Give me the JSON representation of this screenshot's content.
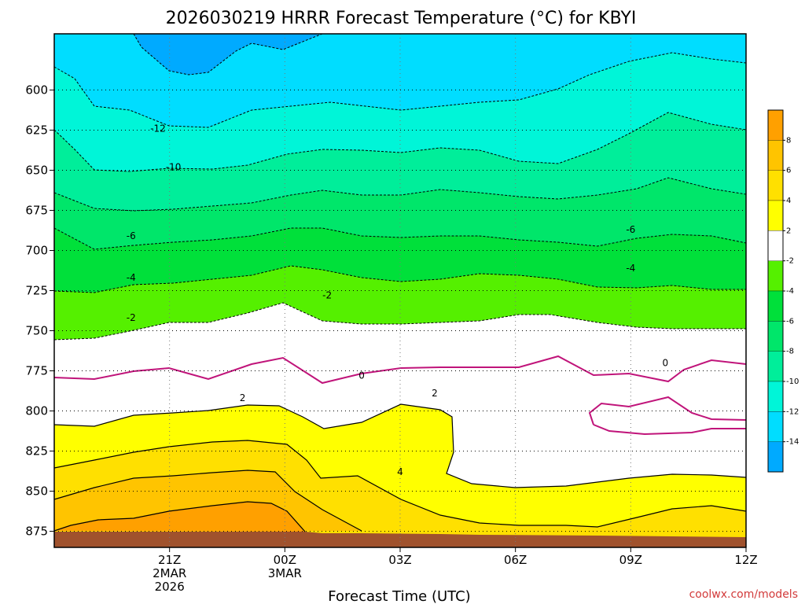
{
  "chart_data": {
    "type": "heatmap",
    "title": "2026030219 HRRR Forecast Temperature (°C) for KBYI",
    "xlabel": "Forecast Time (UTC)",
    "ylabel": "",
    "y_axis": {
      "reversed": true,
      "range": [
        885,
        565
      ],
      "ticks": [
        600,
        625,
        650,
        675,
        700,
        725,
        750,
        775,
        800,
        825,
        850,
        875
      ]
    },
    "x_axis": {
      "range": [
        -3,
        15
      ],
      "ticks": [
        {
          "x": 0,
          "lines": [
            "21Z",
            "2MAR",
            "2026"
          ]
        },
        {
          "x": 3,
          "lines": [
            "00Z",
            "3MAR"
          ]
        },
        {
          "x": 6,
          "lines": [
            "03Z"
          ]
        },
        {
          "x": 9,
          "lines": [
            "06Z"
          ]
        },
        {
          "x": 12,
          "lines": [
            "09Z"
          ]
        },
        {
          "x": 15,
          "lines": [
            "12Z"
          ]
        }
      ]
    },
    "grid": true,
    "fill_levels": [
      {
        "range": [
          -16,
          -14
        ],
        "color": "#00aaff"
      },
      {
        "range": [
          -14,
          -12
        ],
        "color": "#00ddff"
      },
      {
        "range": [
          -12,
          -10
        ],
        "color": "#00f5d8"
      },
      {
        "range": [
          -10,
          -8
        ],
        "color": "#00ee9a"
      },
      {
        "range": [
          -8,
          -6
        ],
        "color": "#00e66a"
      },
      {
        "range": [
          -6,
          -4
        ],
        "color": "#00e03a"
      },
      {
        "range": [
          -4,
          -2
        ],
        "color": "#55f000"
      },
      {
        "range": [
          -2,
          2
        ],
        "color": "#ffffff"
      },
      {
        "range": [
          2,
          4
        ],
        "color": "#ffff00"
      },
      {
        "range": [
          4,
          6
        ],
        "color": "#ffe000"
      },
      {
        "range": [
          6,
          8
        ],
        "color": "#ffc400"
      },
      {
        "range": [
          8,
          10
        ],
        "color": "#ffa000"
      }
    ],
    "colorbar_labels": [
      "8",
      "6",
      "4",
      "2",
      "-2",
      "-4",
      "-6",
      "-8",
      "-10",
      "-12",
      "-14"
    ],
    "ground_color": "#a0522d",
    "zero_line_color": "#c0147a",
    "contour_labels": [
      {
        "text": "-12",
        "x": -0.3,
        "p": 624
      },
      {
        "text": "-10",
        "x": 0.1,
        "p": 648
      },
      {
        "text": "-6",
        "x": -1.0,
        "p": 691
      },
      {
        "text": "-6",
        "x": 12.0,
        "p": 687
      },
      {
        "text": "-4",
        "x": -1.0,
        "p": 717
      },
      {
        "text": "-4",
        "x": 12.0,
        "p": 711
      },
      {
        "text": "-2",
        "x": 4.1,
        "p": 728
      },
      {
        "text": "-2",
        "x": -1.0,
        "p": 742
      },
      {
        "text": "0",
        "x": 5.0,
        "p": 778
      },
      {
        "text": "0",
        "x": 12.9,
        "p": 770
      },
      {
        "text": "2",
        "x": 1.9,
        "p": 792
      },
      {
        "text": "2",
        "x": 6.9,
        "p": 789
      },
      {
        "text": "4",
        "x": 6.0,
        "p": 838
      }
    ],
    "credit": "coolwx.com/models"
  }
}
